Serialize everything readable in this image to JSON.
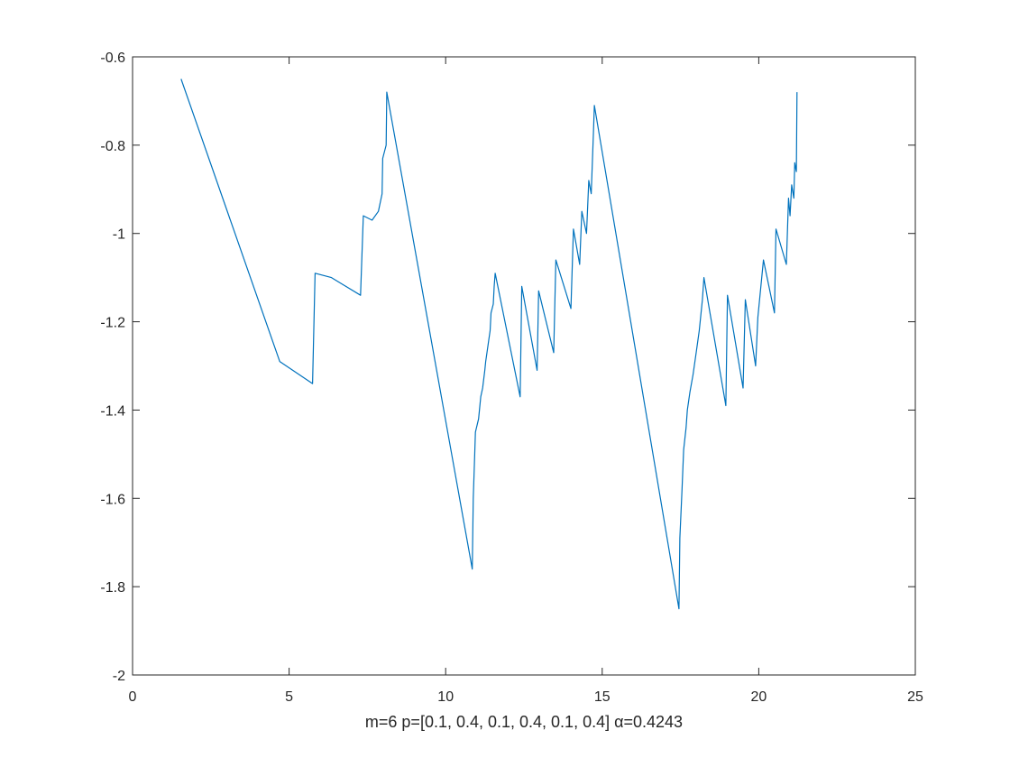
{
  "chart_data": {
    "type": "line",
    "title": "",
    "xlabel": "m=6 p=[0.1, 0.4, 0.1, 0.4, 0.1, 0.4] α=0.4243",
    "ylabel": "",
    "xlim": [
      0,
      25
    ],
    "ylim": [
      -2,
      -0.6
    ],
    "xticks": [
      0,
      5,
      10,
      15,
      20,
      25
    ],
    "yticks": [
      -2,
      -1.8,
      -1.6,
      -1.4,
      -1.2,
      -1,
      -0.8,
      -0.6
    ],
    "xtick_labels": [
      "0",
      "5",
      "10",
      "15",
      "20",
      "25"
    ],
    "ytick_labels": [
      "-2",
      "-1.8",
      "-1.6",
      "-1.4",
      "-1.2",
      "-1",
      "-0.8",
      "-0.6"
    ],
    "grid": false,
    "box": true,
    "line_color": "#0072bd",
    "axis_color": "#262626",
    "series": [
      {
        "x": [
          1.55,
          4.7,
          5.75,
          5.83,
          6.35,
          7.28,
          7.37,
          7.65,
          7.85,
          7.97,
          7.99,
          8.1,
          8.12,
          10.85,
          10.88,
          10.92,
          10.95,
          11.05,
          11.12,
          11.18,
          11.25,
          11.28,
          11.38,
          11.42,
          11.45,
          11.52,
          11.55,
          11.58,
          12.38,
          12.43,
          12.92,
          12.97,
          13.45,
          13.52,
          14.0,
          14.08,
          14.28,
          14.35,
          14.5,
          14.57,
          14.65,
          14.72,
          14.75,
          17.45,
          17.48,
          17.55,
          17.6,
          17.68,
          17.72,
          17.8,
          17.9,
          18.0,
          18.1,
          18.2,
          18.25,
          18.95,
          19.0,
          19.5,
          19.57,
          19.9,
          19.97,
          20.15,
          20.5,
          20.55,
          20.88,
          20.95,
          21.0,
          21.05,
          21.12,
          21.15,
          21.2,
          21.22
        ],
        "y": [
          -0.65,
          -1.29,
          -1.34,
          -1.09,
          -1.1,
          -1.14,
          -0.96,
          -0.97,
          -0.95,
          -0.91,
          -0.83,
          -0.8,
          -0.68,
          -1.76,
          -1.6,
          -1.52,
          -1.45,
          -1.42,
          -1.37,
          -1.35,
          -1.31,
          -1.29,
          -1.24,
          -1.22,
          -1.18,
          -1.16,
          -1.12,
          -1.09,
          -1.37,
          -1.12,
          -1.31,
          -1.13,
          -1.27,
          -1.06,
          -1.17,
          -0.99,
          -1.07,
          -0.95,
          -1.0,
          -0.88,
          -0.91,
          -0.77,
          -0.71,
          -1.85,
          -1.69,
          -1.58,
          -1.49,
          -1.44,
          -1.4,
          -1.36,
          -1.32,
          -1.27,
          -1.22,
          -1.15,
          -1.1,
          -1.39,
          -1.14,
          -1.35,
          -1.15,
          -1.3,
          -1.19,
          -1.06,
          -1.18,
          -0.99,
          -1.07,
          -0.92,
          -0.96,
          -0.89,
          -0.92,
          -0.84,
          -0.86,
          -0.68
        ]
      }
    ]
  }
}
